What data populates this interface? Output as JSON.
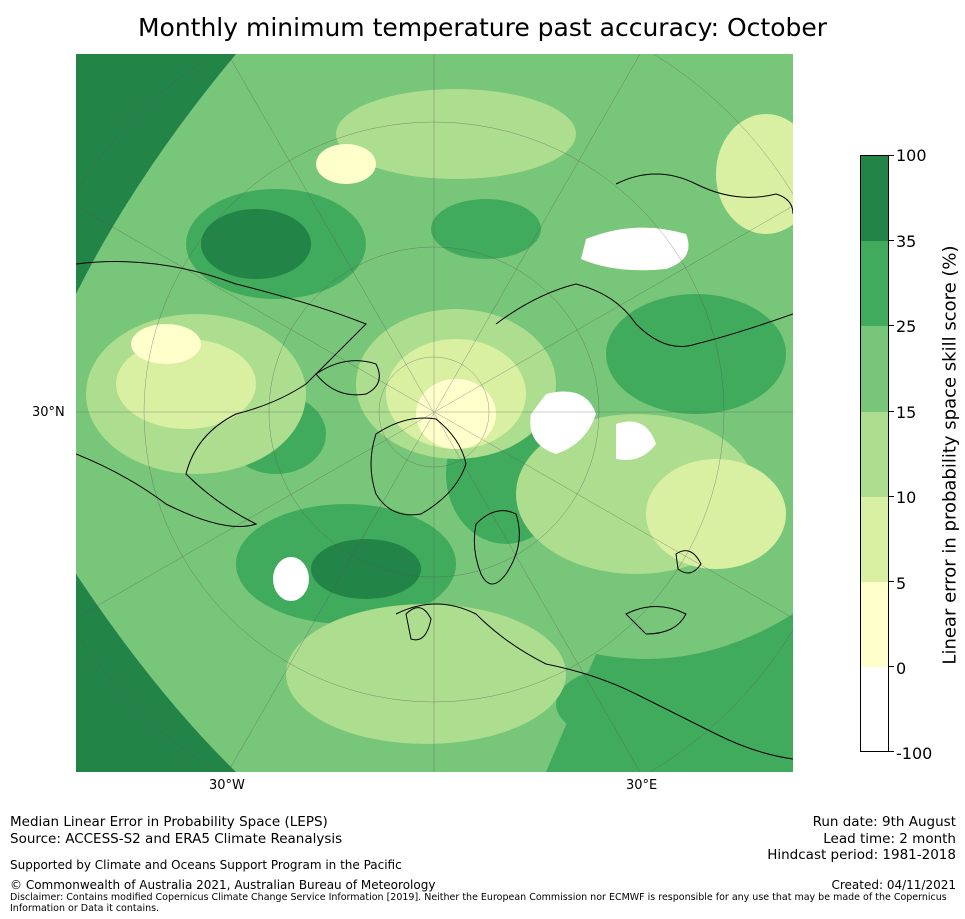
{
  "title": "Monthly minimum temperature past accuracy: October",
  "map": {
    "lat_label": "30°N",
    "lon_labels": [
      "30°W",
      "30°E"
    ]
  },
  "colorbar": {
    "label": "Linear error in probability space skill score (%)",
    "ticks": [
      "100",
      "35",
      "25",
      "15",
      "10",
      "5",
      "0",
      "-100"
    ],
    "bins": [
      {
        "range": "35–100",
        "color": "#238447"
      },
      {
        "range": "25–35",
        "color": "#41ab5d"
      },
      {
        "range": "15–25",
        "color": "#78c679"
      },
      {
        "range": "10–15",
        "color": "#addd8e"
      },
      {
        "range": "5–10",
        "color": "#d9f0a3"
      },
      {
        "range": "0–5",
        "color": "#ffffcc"
      },
      {
        "range": "-100–0",
        "color": "#ffffff"
      }
    ]
  },
  "footer": {
    "left_line1": "Median Linear Error in Probability Space (LEPS)",
    "left_line2": "Source: ACCESS-S2 and ERA5 Climate Reanalysis",
    "support": "Supported by Climate and Oceans Support Program in the Pacific",
    "copyright": "© Commonwealth of Australia 2021, Australian Bureau of Meteorology",
    "disclaimer_line1": "Disclaimer: Contains modified Copernicus Climate Change Service Information [2019]. Neither the European Commission nor ECMWF is responsible for any use that may be made of the Copernicus",
    "disclaimer_line2": "Information or Data it contains.",
    "run_date": "Run date: 9th August",
    "lead_time": "Lead time: 2 month",
    "hindcast": "Hindcast period: 1981-2018",
    "created": "Created: 04/11/2021"
  }
}
